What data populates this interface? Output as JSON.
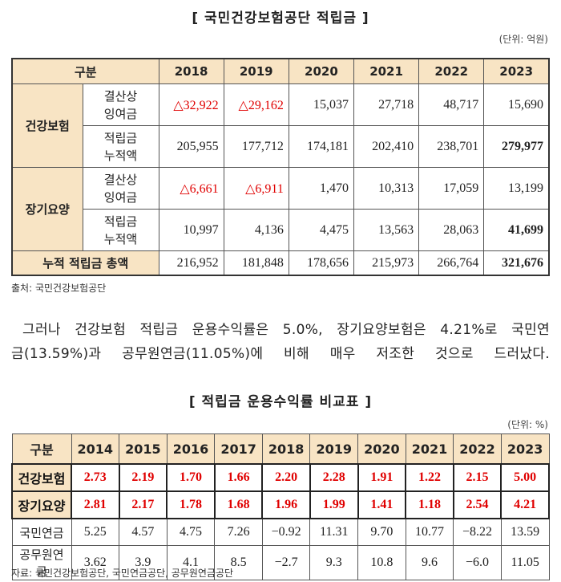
{
  "table1": {
    "title": "[ 국민건강보험공단 적립금 ]",
    "unit": "(단위: 억원)",
    "header": [
      "구분",
      "2018",
      "2019",
      "2020",
      "2021",
      "2022",
      "2023"
    ],
    "groups": [
      {
        "name": "건강보험",
        "rows": [
          {
            "label": [
              "결산상",
              "잉여금"
            ],
            "cells": [
              "△32,922",
              "△29,162",
              "15,037",
              "27,718",
              "48,717",
              "15,690"
            ]
          },
          {
            "label": [
              "적립금",
              "누적액"
            ],
            "cells": [
              "205,955",
              "177,712",
              "174,181",
              "202,410",
              "238,701",
              "279,977"
            ]
          }
        ]
      },
      {
        "name": "장기요양",
        "rows": [
          {
            "label": [
              "결산상",
              "잉여금"
            ],
            "cells": [
              "△6,661",
              "△6,911",
              "1,470",
              "10,313",
              "17,059",
              "13,199"
            ]
          },
          {
            "label": [
              "적립금",
              "누적액"
            ],
            "cells": [
              "10,997",
              "4,136",
              "4,475",
              "13,563",
              "28,063",
              "41,699"
            ]
          }
        ]
      }
    ],
    "total": {
      "label": "누적 적립금 총액",
      "cells": [
        "216,952",
        "181,848",
        "178,656",
        "215,973",
        "266,764",
        "321,676"
      ]
    },
    "source": "출처: 국민건강보험공단"
  },
  "paragraph": [
    "그러나 건강보험 적립금 운용수익률은 5.0%, 장기요양보험은 4.21%로 국민연",
    "금(13.59%)과 공무원연금(11.05%)에 비해 매우 저조한 것으로 드러났다."
  ],
  "table2": {
    "title": "[ 적립금 운용수익률 비교표 ]",
    "unit": "(단위: %)",
    "header": [
      "구분",
      "2014",
      "2015",
      "2016",
      "2017",
      "2018",
      "2019",
      "2020",
      "2021",
      "2022",
      "2023"
    ],
    "rows": [
      {
        "label": "건강보험",
        "cells": [
          "2.73",
          "2.19",
          "1.70",
          "1.66",
          "2.20",
          "2.28",
          "1.91",
          "1.22",
          "2.15",
          "5.00"
        ]
      },
      {
        "label": "장기요양",
        "cells": [
          "2.81",
          "2.17",
          "1.78",
          "1.68",
          "1.96",
          "1.99",
          "1.41",
          "1.18",
          "2.54",
          "4.21"
        ]
      },
      {
        "label": "국민연금",
        "cells": [
          "5.25",
          "4.57",
          "4.75",
          "7.26",
          "−0.92",
          "11.31",
          "9.70",
          "10.77",
          "−8.22",
          "13.59"
        ]
      },
      {
        "label": "공무원연금",
        "cells": [
          "3.62",
          "3.9",
          "4.1",
          "8.5",
          "−2.7",
          "9.3",
          "10.8",
          "9.6",
          "−6.0",
          "11.05"
        ]
      }
    ],
    "source": "자료: 국민건강보험공단, 국민연금공단, 공무원연금공단"
  }
}
